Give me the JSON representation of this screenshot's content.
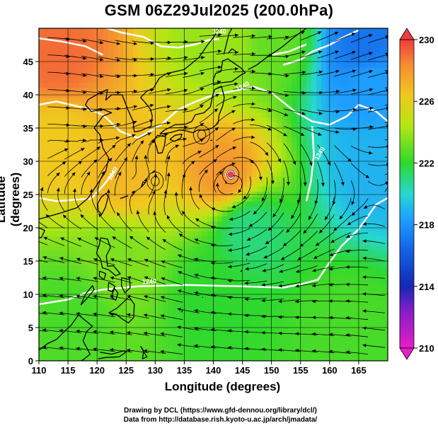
{
  "title": "GSM 06Z29Jul2025 (200.0hPa)",
  "axes": {
    "xlabel": "Longitude (degrees)",
    "ylabel": "Latitude  (degrees)"
  },
  "credits": {
    "line1": "Drawing by DCL (https://www.gfd-dennou.org/library/dcl/)",
    "line2": "Data from http://database.rish.kyoto-u.ac.jp/arch/jmadata/"
  },
  "chart_data": {
    "type": "heatmap",
    "title": "GSM 06Z29Jul2025 (200.0hPa)",
    "xlabel": "Longitude (degrees)",
    "ylabel": "Latitude  (degrees)",
    "xlim": [
      110,
      170
    ],
    "ylim": [
      0,
      50
    ],
    "xticks": [
      110,
      115,
      120,
      125,
      130,
      135,
      140,
      145,
      150,
      155,
      160,
      165
    ],
    "yticks": [
      0,
      5,
      10,
      15,
      20,
      25,
      30,
      35,
      40,
      45
    ],
    "grid": true,
    "colorbar": {
      "min": 210,
      "max": 230,
      "ticks": [
        210,
        214,
        218,
        222,
        226,
        230
      ],
      "colors": [
        "#e81ec8",
        "#1428b4",
        "#1ea0ff",
        "#26d8d0",
        "#2ed82e",
        "#b4e614",
        "#f0c81e",
        "#f58c32",
        "#f03c3c"
      ]
    },
    "contour_labels": [
      "1240",
      "1240",
      "1240",
      "1240",
      "1240"
    ],
    "field_anchors": [
      {
        "lon": 113,
        "lat": 45,
        "value": 229
      },
      {
        "lon": 113,
        "lat": 34,
        "value": 226.5
      },
      {
        "lon": 124,
        "lat": 28,
        "value": 227
      },
      {
        "lon": 142,
        "lat": 28,
        "value": 228
      },
      {
        "lon": 143,
        "lat": 48,
        "value": 224
      },
      {
        "lon": 150,
        "lat": 48,
        "value": 223
      },
      {
        "lon": 167,
        "lat": 42,
        "value": 218.5
      },
      {
        "lon": 168,
        "lat": 29,
        "value": 219
      },
      {
        "lon": 166,
        "lat": 47,
        "value": 217
      },
      {
        "lon": 146,
        "lat": 20,
        "value": 221
      },
      {
        "lon": 140,
        "lat": 10,
        "value": 222
      },
      {
        "lon": 116,
        "lat": 8,
        "value": 222.5
      },
      {
        "lon": 123,
        "lat": 15,
        "value": 223.5
      },
      {
        "lon": 163,
        "lat": 5,
        "value": 222.5
      }
    ],
    "vortex_centers": [
      {
        "lon": 143,
        "lat": 28
      },
      {
        "lon": 138,
        "lat": 34
      },
      {
        "lon": 130,
        "lat": 27
      }
    ]
  },
  "colors": {
    "coast": "#000000",
    "grid": "#000000",
    "contour": "#ffffff"
  }
}
